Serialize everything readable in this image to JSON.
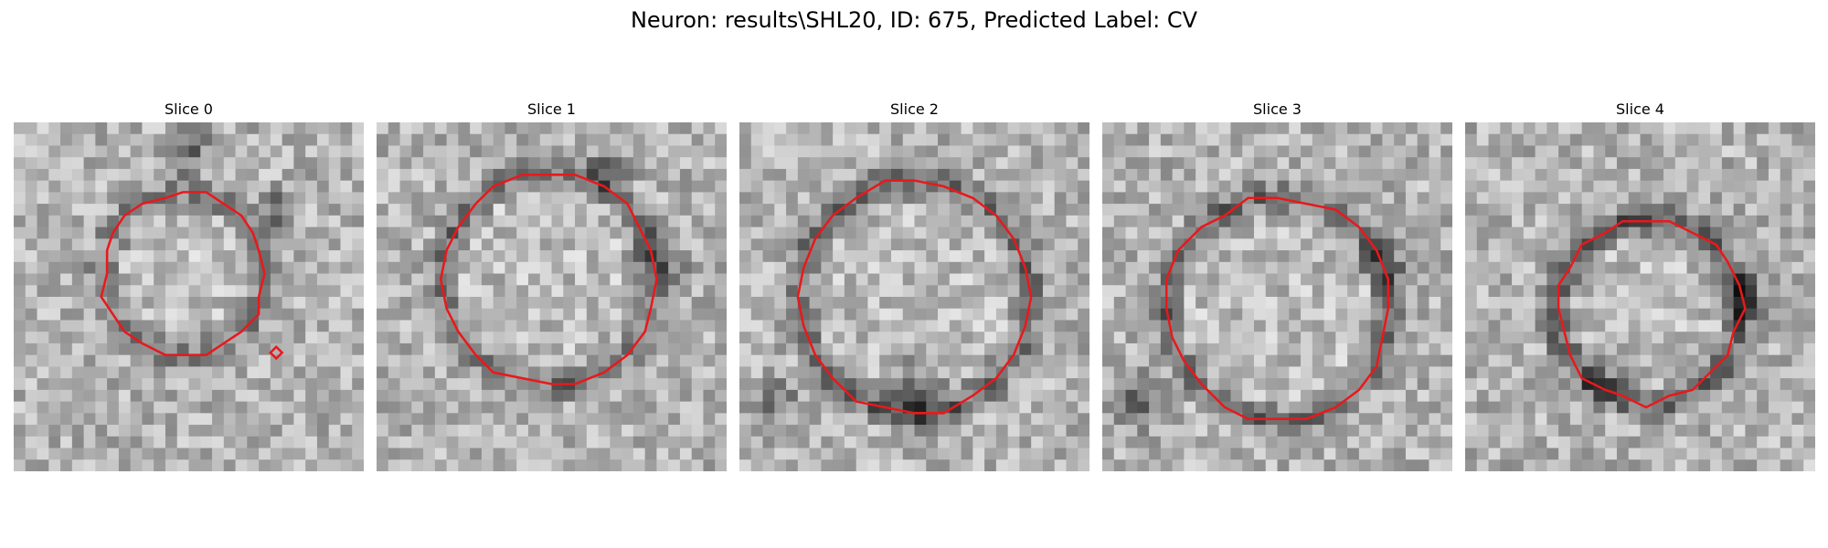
{
  "figure": {
    "title": "Neuron: results\\SHL20, ID: 675, Predicted Label: CV"
  },
  "panels": [
    {
      "title": "Slice 0"
    },
    {
      "title": "Slice 1"
    },
    {
      "title": "Slice 2"
    },
    {
      "title": "Slice 3"
    },
    {
      "title": "Slice 4"
    }
  ],
  "colors": {
    "contour": "#e8191c",
    "background": "#ffffff",
    "text": "#000000"
  }
}
